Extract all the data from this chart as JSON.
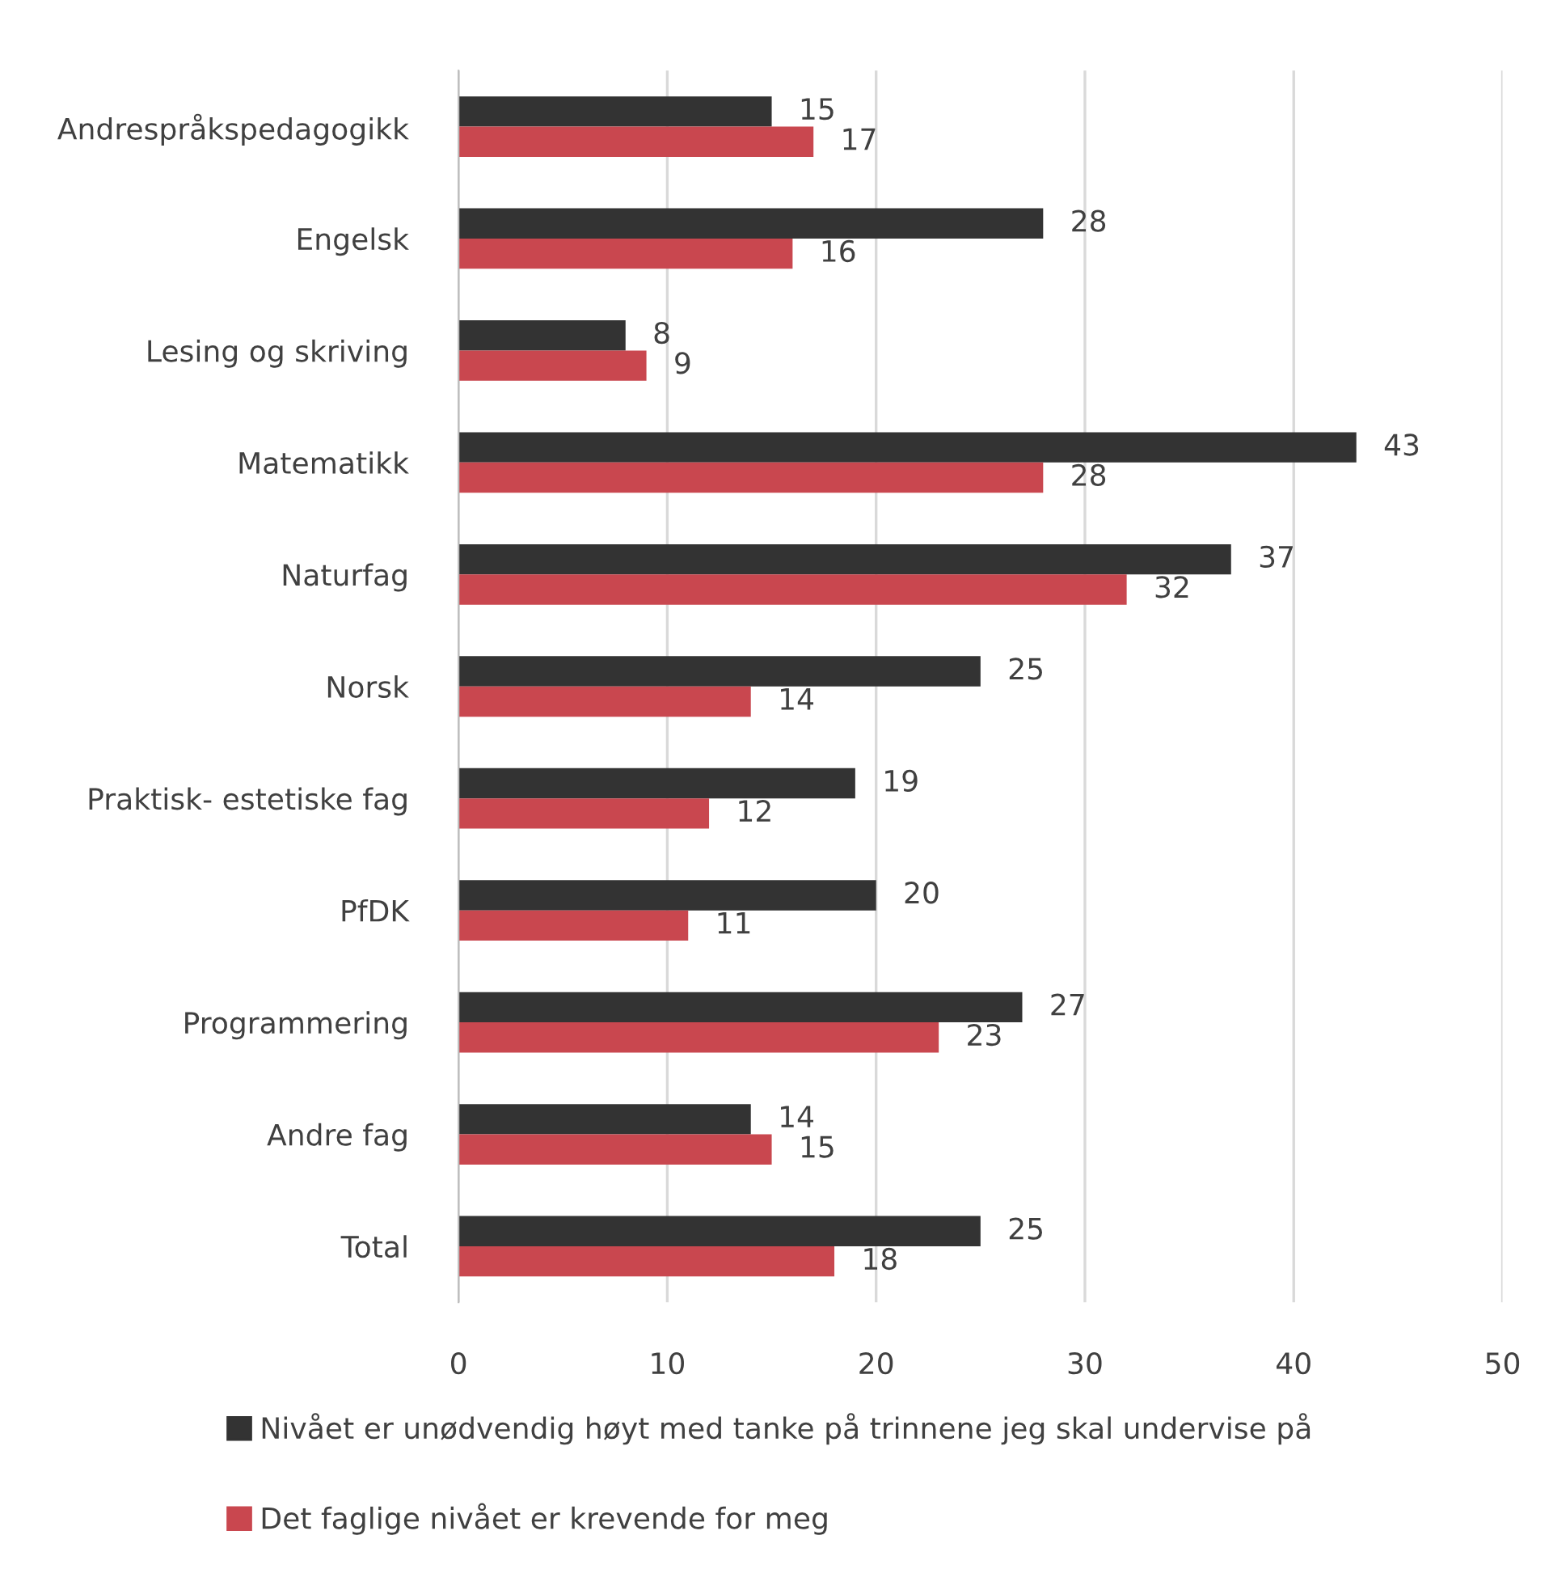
{
  "chart_data": {
    "type": "bar",
    "orientation": "horizontal",
    "categories": [
      "Andrespråkspedagogikk",
      "Engelsk",
      "Lesing og skriving",
      "Matematikk",
      "Naturfag",
      "Norsk",
      "Praktisk- estetiske fag",
      "PfDK",
      "Programmering",
      "Andre fag",
      "Total"
    ],
    "series": [
      {
        "name": "Nivået er unødvendig høyt med tanke på trinnene jeg skal undervise på",
        "color": "#333333",
        "values": [
          15,
          28,
          8,
          43,
          37,
          25,
          19,
          20,
          27,
          14,
          25
        ]
      },
      {
        "name": "Det faglige nivået er krevende for meg",
        "color": "#c9474f",
        "values": [
          17,
          16,
          9,
          28,
          32,
          14,
          12,
          11,
          23,
          15,
          18
        ]
      }
    ],
    "xlim": [
      0,
      50
    ],
    "xticks": [
      0,
      10,
      20,
      30,
      40,
      50
    ],
    "grid": "x",
    "legend": "bottom",
    "data_labels": true
  }
}
